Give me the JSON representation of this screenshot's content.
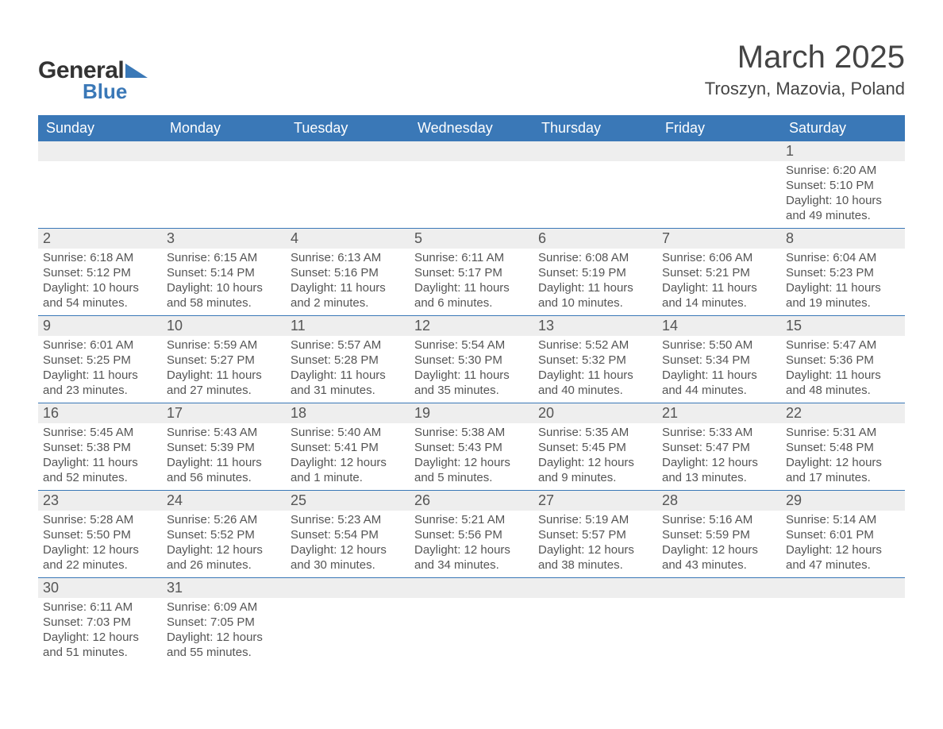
{
  "brand": {
    "name_part1": "General",
    "name_part2": "Blue",
    "color_text": "#333333",
    "color_accent": "#3a78b7"
  },
  "title": "March 2025",
  "location": "Troszyn, Mazovia, Poland",
  "colors": {
    "header_bg": "#3a78b7",
    "header_text": "#ffffff",
    "numrow_bg": "#eeeeee",
    "body_text": "#555555",
    "page_bg": "#ffffff",
    "row_border": "#3a78b7"
  },
  "fonts": {
    "title_size_pt": 30,
    "location_size_pt": 17,
    "dow_size_pt": 14,
    "daynum_size_pt": 14,
    "info_size_pt": 11
  },
  "days_of_week": [
    "Sunday",
    "Monday",
    "Tuesday",
    "Wednesday",
    "Thursday",
    "Friday",
    "Saturday"
  ],
  "weeks": [
    [
      null,
      null,
      null,
      null,
      null,
      null,
      {
        "n": "1",
        "sunrise": "6:20 AM",
        "sunset": "5:10 PM",
        "daylight": "10 hours and 49 minutes."
      }
    ],
    [
      {
        "n": "2",
        "sunrise": "6:18 AM",
        "sunset": "5:12 PM",
        "daylight": "10 hours and 54 minutes."
      },
      {
        "n": "3",
        "sunrise": "6:15 AM",
        "sunset": "5:14 PM",
        "daylight": "10 hours and 58 minutes."
      },
      {
        "n": "4",
        "sunrise": "6:13 AM",
        "sunset": "5:16 PM",
        "daylight": "11 hours and 2 minutes."
      },
      {
        "n": "5",
        "sunrise": "6:11 AM",
        "sunset": "5:17 PM",
        "daylight": "11 hours and 6 minutes."
      },
      {
        "n": "6",
        "sunrise": "6:08 AM",
        "sunset": "5:19 PM",
        "daylight": "11 hours and 10 minutes."
      },
      {
        "n": "7",
        "sunrise": "6:06 AM",
        "sunset": "5:21 PM",
        "daylight": "11 hours and 14 minutes."
      },
      {
        "n": "8",
        "sunrise": "6:04 AM",
        "sunset": "5:23 PM",
        "daylight": "11 hours and 19 minutes."
      }
    ],
    [
      {
        "n": "9",
        "sunrise": "6:01 AM",
        "sunset": "5:25 PM",
        "daylight": "11 hours and 23 minutes."
      },
      {
        "n": "10",
        "sunrise": "5:59 AM",
        "sunset": "5:27 PM",
        "daylight": "11 hours and 27 minutes."
      },
      {
        "n": "11",
        "sunrise": "5:57 AM",
        "sunset": "5:28 PM",
        "daylight": "11 hours and 31 minutes."
      },
      {
        "n": "12",
        "sunrise": "5:54 AM",
        "sunset": "5:30 PM",
        "daylight": "11 hours and 35 minutes."
      },
      {
        "n": "13",
        "sunrise": "5:52 AM",
        "sunset": "5:32 PM",
        "daylight": "11 hours and 40 minutes."
      },
      {
        "n": "14",
        "sunrise": "5:50 AM",
        "sunset": "5:34 PM",
        "daylight": "11 hours and 44 minutes."
      },
      {
        "n": "15",
        "sunrise": "5:47 AM",
        "sunset": "5:36 PM",
        "daylight": "11 hours and 48 minutes."
      }
    ],
    [
      {
        "n": "16",
        "sunrise": "5:45 AM",
        "sunset": "5:38 PM",
        "daylight": "11 hours and 52 minutes."
      },
      {
        "n": "17",
        "sunrise": "5:43 AM",
        "sunset": "5:39 PM",
        "daylight": "11 hours and 56 minutes."
      },
      {
        "n": "18",
        "sunrise": "5:40 AM",
        "sunset": "5:41 PM",
        "daylight": "12 hours and 1 minute."
      },
      {
        "n": "19",
        "sunrise": "5:38 AM",
        "sunset": "5:43 PM",
        "daylight": "12 hours and 5 minutes."
      },
      {
        "n": "20",
        "sunrise": "5:35 AM",
        "sunset": "5:45 PM",
        "daylight": "12 hours and 9 minutes."
      },
      {
        "n": "21",
        "sunrise": "5:33 AM",
        "sunset": "5:47 PM",
        "daylight": "12 hours and 13 minutes."
      },
      {
        "n": "22",
        "sunrise": "5:31 AM",
        "sunset": "5:48 PM",
        "daylight": "12 hours and 17 minutes."
      }
    ],
    [
      {
        "n": "23",
        "sunrise": "5:28 AM",
        "sunset": "5:50 PM",
        "daylight": "12 hours and 22 minutes."
      },
      {
        "n": "24",
        "sunrise": "5:26 AM",
        "sunset": "5:52 PM",
        "daylight": "12 hours and 26 minutes."
      },
      {
        "n": "25",
        "sunrise": "5:23 AM",
        "sunset": "5:54 PM",
        "daylight": "12 hours and 30 minutes."
      },
      {
        "n": "26",
        "sunrise": "5:21 AM",
        "sunset": "5:56 PM",
        "daylight": "12 hours and 34 minutes."
      },
      {
        "n": "27",
        "sunrise": "5:19 AM",
        "sunset": "5:57 PM",
        "daylight": "12 hours and 38 minutes."
      },
      {
        "n": "28",
        "sunrise": "5:16 AM",
        "sunset": "5:59 PM",
        "daylight": "12 hours and 43 minutes."
      },
      {
        "n": "29",
        "sunrise": "5:14 AM",
        "sunset": "6:01 PM",
        "daylight": "12 hours and 47 minutes."
      }
    ],
    [
      {
        "n": "30",
        "sunrise": "6:11 AM",
        "sunset": "7:03 PM",
        "daylight": "12 hours and 51 minutes."
      },
      {
        "n": "31",
        "sunrise": "6:09 AM",
        "sunset": "7:05 PM",
        "daylight": "12 hours and 55 minutes."
      },
      null,
      null,
      null,
      null,
      null
    ]
  ],
  "labels": {
    "sunrise": "Sunrise:",
    "sunset": "Sunset:",
    "daylight": "Daylight:"
  }
}
